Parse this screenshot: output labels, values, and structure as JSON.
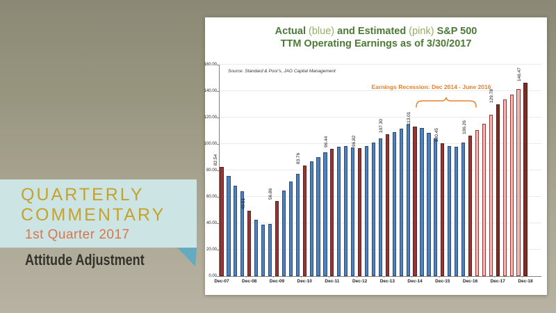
{
  "banner": {
    "line1": "QUARTERLY",
    "line2": "COMMENTARY",
    "subtitle": "1st Quarter 2017",
    "section_title": "Attitude Adjustment",
    "title_color": "#C4A22C",
    "subtitle_color": "#D8754A",
    "box_color": "#CDE4E5",
    "fold_color": "#64ABBF"
  },
  "chart_title": {
    "s1": "Actual",
    "s2": " (blue) ",
    "s3": "and Estimated",
    "s4": " (pink) ",
    "s5": "S&P 500",
    "line2": "TTM Operating Earnings as of 3/30/2017",
    "dark_green": "#4A7A35",
    "light_green": "#93AC66"
  },
  "chart_data": {
    "type": "bar",
    "title": "Actual (blue) and Estimated (pink) S&P 500 TTM Operating Earnings as of 3/30/2017",
    "source": "Source: Standard & Poor's, JAG Capital Management",
    "annotation": "Earnings Recession: Dec 2014 - June 2016",
    "annotation_color": "#E8802C",
    "xlabel": "",
    "ylabel": "",
    "ylim": [
      0,
      160
    ],
    "ytick_step": 20,
    "ytick_labels": [
      "0.00",
      "20.00",
      "40.00",
      "60.00",
      "80.00",
      "100.00",
      "120.00",
      "140.00",
      "160.00"
    ],
    "grid": "horizontal-faint",
    "legend": "encoded in title (blue = actual, pink = estimated)",
    "categories": [
      "Dec-07",
      "Mar-08",
      "Jun-08",
      "Sep-08",
      "Dec-08",
      "Mar-09",
      "Jun-09",
      "Sep-09",
      "Dec-09",
      "Mar-10",
      "Jun-10",
      "Sep-10",
      "Dec-10",
      "Mar-11",
      "Jun-11",
      "Sep-11",
      "Dec-11",
      "Mar-12",
      "Jun-12",
      "Sep-12",
      "Dec-12",
      "Mar-13",
      "Jun-13",
      "Sep-13",
      "Dec-13",
      "Mar-14",
      "Jun-14",
      "Sep-14",
      "Dec-14",
      "Mar-15",
      "Jun-15",
      "Sep-15",
      "Dec-15",
      "Mar-16",
      "Jun-16",
      "Sep-16",
      "Dec-16",
      "Mar-17",
      "Jun-17",
      "Sep-17",
      "Dec-17",
      "Mar-18",
      "Jun-18",
      "Sep-18",
      "Dec-18"
    ],
    "values": [
      82.54,
      76.0,
      68.5,
      64.0,
      49.51,
      42.5,
      39.0,
      39.3,
      56.86,
      64.5,
      71.5,
      77.5,
      83.76,
      87.0,
      90.0,
      93.5,
      96.44,
      98.0,
      98.5,
      97.5,
      96.82,
      98.5,
      101.0,
      104.0,
      107.3,
      109.0,
      111.5,
      114.5,
      113.01,
      112.0,
      108.5,
      104.0,
      100.45,
      98.5,
      98.0,
      101.0,
      106.26,
      110.5,
      115.5,
      122.0,
      129.78,
      133.5,
      137.5,
      141.5,
      146.47
    ],
    "point_labels": [
      "82.54",
      "",
      "",
      "",
      "49.51",
      "",
      "",
      "",
      "56.86",
      "",
      "",
      "",
      "83.76",
      "",
      "",
      "",
      "96.44",
      "",
      "",
      "",
      "96.82",
      "",
      "",
      "",
      "107.30",
      "",
      "",
      "",
      "113.01",
      "",
      "",
      "",
      "100.45",
      "",
      "",
      "",
      "106.26",
      "",
      "",
      "",
      "129.78",
      "",
      "",
      "",
      "146.47"
    ],
    "xtick_labels": [
      "Dec-07",
      "Dec-08",
      "Dec-09",
      "Dec-10",
      "Dec-11",
      "Dec-12",
      "Dec-13",
      "Dec-14",
      "Dec-15",
      "Dec-16",
      "Dec-17",
      "Dec-18"
    ],
    "xtick_every": 4,
    "estimated_start_index": 37,
    "colors": {
      "actual_quarter_fill": "#4F81BD",
      "actual_quarter_border": "#2A4A73",
      "actual_dec_fill": "#943634",
      "actual_dec_border": "#5C1F1D",
      "estimated_quarter_fill": "#E7BDBC",
      "estimated_quarter_border": "#943634",
      "estimated_dec_fill": "#7C2D25",
      "estimated_dec_border": "#4E1813"
    }
  }
}
